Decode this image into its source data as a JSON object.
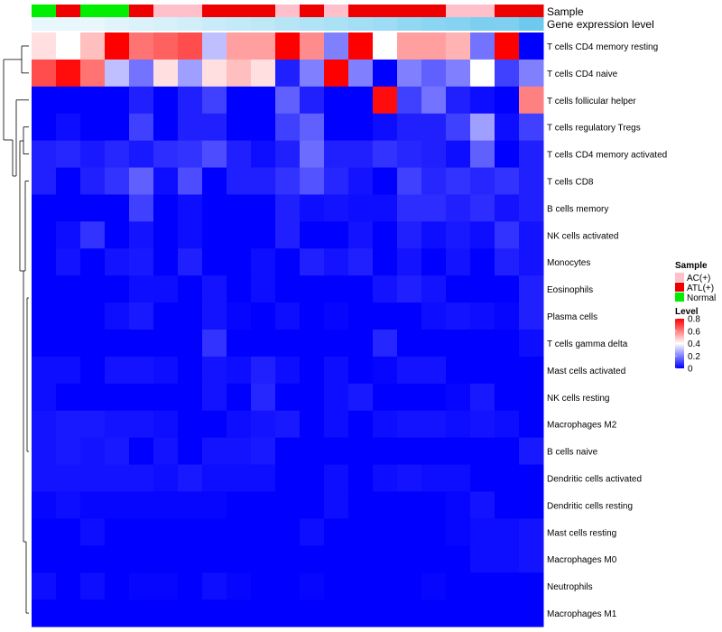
{
  "chart_data": {
    "type": "heatmap",
    "title": "",
    "annotation_labels": {
      "sample": "Sample",
      "expr": "Gene expression level"
    },
    "sample_colors": [
      "#00ee00",
      "#ee0000",
      "#00ee00",
      "#00ee00",
      "#ee0000",
      "#ffc0cb",
      "#ffc0cb",
      "#ee0000",
      "#ee0000",
      "#ee0000",
      "#ffc0cb",
      "#ee0000",
      "#ffc0cb",
      "#ee0000",
      "#ee0000",
      "#ee0000",
      "#ee0000",
      "#ffc0cb",
      "#ffc0cb",
      "#ee0000",
      "#ee0000"
    ],
    "expr_colors": [
      "#e8f7fc",
      "#e8f7fc",
      "#e8f7fc",
      "#e1f4fb",
      "#dbf2fa",
      "#d6f1fa",
      "#d2eff9",
      "#c9ecf8",
      "#c3eaf8",
      "#bfe8f7",
      "#b6e5f6",
      "#b1e3f6",
      "#a9e1f5",
      "#a3def4",
      "#9ddcf4",
      "#93d8f3",
      "#8bd4f2",
      "#86d2f1",
      "#7ecef0",
      "#7fcff0",
      "#6ec9ef"
    ],
    "rows": [
      "T cells CD4 memory resting",
      "T cells CD4 naive",
      "T cells follicular helper",
      "T cells regulatory  Tregs",
      "T cells CD4 memory activated",
      "T cells CD8",
      "B cells memory",
      "NK cells activated",
      "Monocytes",
      "Eosinophils",
      "Plasma cells",
      "T cells gamma delta",
      "Mast cells activated",
      "NK cells resting",
      "Macrophages M2",
      "B cells naive",
      "Dendritic cells activated",
      "Dendritic cells resting",
      "Mast cells resting",
      "Macrophages M0",
      "Neutrophils",
      "Macrophages M1"
    ],
    "values": [
      [
        0.45,
        0.4,
        0.5,
        0.8,
        0.62,
        0.65,
        0.68,
        0.3,
        0.55,
        0.55,
        0.8,
        0.58,
        0.2,
        0.8,
        0.4,
        0.55,
        0.55,
        0.52,
        0.18,
        0.8,
        0.0
      ],
      [
        0.68,
        0.78,
        0.62,
        0.3,
        0.18,
        0.45,
        0.25,
        0.45,
        0.5,
        0.45,
        0.05,
        0.2,
        0.8,
        0.2,
        0.0,
        0.2,
        0.15,
        0.2,
        0.4,
        0.1,
        0.2
      ],
      [
        0.0,
        0.0,
        0.0,
        0.0,
        0.05,
        0.0,
        0.05,
        0.1,
        0.0,
        0.0,
        0.15,
        0.05,
        0.0,
        0.0,
        0.78,
        0.1,
        0.18,
        0.05,
        0.02,
        0.0,
        0.6
      ],
      [
        0.0,
        0.02,
        0.0,
        0.0,
        0.1,
        0.0,
        0.05,
        0.05,
        0.0,
        0.0,
        0.1,
        0.15,
        0.0,
        0.0,
        0.02,
        0.05,
        0.05,
        0.1,
        0.25,
        0.02,
        0.1
      ],
      [
        0.05,
        0.06,
        0.04,
        0.06,
        0.04,
        0.07,
        0.08,
        0.12,
        0.05,
        0.02,
        0.05,
        0.17,
        0.05,
        0.05,
        0.08,
        0.06,
        0.05,
        0.02,
        0.15,
        0.0,
        0.05
      ],
      [
        0.05,
        0.0,
        0.05,
        0.08,
        0.15,
        0.02,
        0.12,
        0.0,
        0.05,
        0.05,
        0.08,
        0.13,
        0.06,
        0.03,
        0.0,
        0.1,
        0.06,
        0.08,
        0.06,
        0.08,
        0.05
      ],
      [
        0.0,
        0.0,
        0.0,
        0.0,
        0.1,
        0.0,
        0.02,
        0.0,
        0.0,
        0.0,
        0.05,
        0.02,
        0.03,
        0.02,
        0.02,
        0.07,
        0.07,
        0.05,
        0.07,
        0.03,
        0.05
      ],
      [
        0.0,
        0.02,
        0.08,
        0.0,
        0.03,
        0.0,
        0.02,
        0.0,
        0.0,
        0.0,
        0.05,
        0.0,
        0.0,
        0.03,
        0.0,
        0.05,
        0.02,
        0.04,
        0.02,
        0.08,
        0.03
      ],
      [
        0.0,
        0.03,
        0.0,
        0.03,
        0.04,
        0.0,
        0.05,
        0.0,
        0.0,
        0.02,
        0.0,
        0.05,
        0.03,
        0.05,
        0.0,
        0.03,
        0.0,
        0.03,
        0.0,
        0.05,
        0.03
      ],
      [
        0.0,
        0.0,
        0.0,
        0.0,
        0.02,
        0.02,
        0.0,
        0.03,
        0.0,
        0.02,
        0.0,
        0.0,
        0.0,
        0.0,
        0.03,
        0.05,
        0.03,
        0.0,
        0.0,
        0.0,
        0.05
      ],
      [
        0.0,
        0.0,
        0.0,
        0.02,
        0.04,
        0.0,
        0.0,
        0.03,
        0.01,
        0.0,
        0.02,
        0.0,
        0.01,
        0.0,
        0.0,
        0.0,
        0.02,
        0.03,
        0.02,
        0.01,
        0.05
      ],
      [
        0.0,
        0.0,
        0.0,
        0.0,
        0.0,
        0.0,
        0.0,
        0.08,
        0.0,
        0.0,
        0.0,
        0.0,
        0.0,
        0.0,
        0.06,
        0.0,
        0.0,
        0.0,
        0.0,
        0.0,
        0.02
      ],
      [
        0.02,
        0.02,
        0.0,
        0.03,
        0.03,
        0.02,
        0.0,
        0.03,
        0.02,
        0.05,
        0.02,
        0.0,
        0.02,
        0.0,
        0.01,
        0.03,
        0.03,
        0.0,
        0.0,
        0.0,
        0.0
      ],
      [
        0.02,
        0.0,
        0.0,
        0.0,
        0.0,
        0.0,
        0.0,
        0.03,
        0.0,
        0.06,
        0.0,
        0.0,
        0.02,
        0.04,
        0.0,
        0.0,
        0.0,
        0.01,
        0.04,
        0.0,
        0.0
      ],
      [
        0.03,
        0.04,
        0.04,
        0.03,
        0.03,
        0.02,
        0.0,
        0.0,
        0.02,
        0.03,
        0.04,
        0.0,
        0.02,
        0.0,
        0.02,
        0.03,
        0.03,
        0.02,
        0.03,
        0.02,
        0.0
      ],
      [
        0.03,
        0.04,
        0.03,
        0.04,
        0.0,
        0.03,
        0.0,
        0.03,
        0.03,
        0.04,
        0.0,
        0.0,
        0.0,
        0.0,
        0.0,
        0.0,
        0.0,
        0.0,
        0.0,
        0.0,
        0.04
      ],
      [
        0.03,
        0.03,
        0.03,
        0.03,
        0.03,
        0.02,
        0.04,
        0.02,
        0.02,
        0.02,
        0.0,
        0.0,
        0.02,
        0.0,
        0.02,
        0.03,
        0.02,
        0.02,
        0.0,
        0.0,
        0.0
      ],
      [
        0.01,
        0.02,
        0.01,
        0.01,
        0.01,
        0.01,
        0.01,
        0.01,
        0.0,
        0.0,
        0.0,
        0.0,
        0.02,
        0.0,
        0.0,
        0.0,
        0.0,
        0.01,
        0.03,
        0.0,
        0.0
      ],
      [
        0.0,
        0.0,
        0.02,
        0.0,
        0.0,
        0.0,
        0.0,
        0.0,
        0.0,
        0.0,
        0.0,
        0.02,
        0.0,
        0.0,
        0.0,
        0.0,
        0.0,
        0.01,
        0.02,
        0.02,
        0.03
      ],
      [
        0.0,
        0.0,
        0.0,
        0.0,
        0.0,
        0.0,
        0.0,
        0.0,
        0.0,
        0.0,
        0.0,
        0.0,
        0.0,
        0.0,
        0.0,
        0.0,
        0.0,
        0.0,
        0.02,
        0.02,
        0.03
      ],
      [
        0.02,
        0.0,
        0.02,
        0.0,
        0.01,
        0.01,
        0.0,
        0.02,
        0.01,
        0.0,
        0.0,
        0.01,
        0.0,
        0.0,
        0.0,
        0.0,
        0.01,
        0.0,
        0.0,
        0.0,
        0.0
      ],
      [
        0.0,
        0.0,
        0.0,
        0.0,
        0.0,
        0.0,
        0.0,
        0.0,
        0.0,
        0.0,
        0.0,
        0.0,
        0.0,
        0.0,
        0.0,
        0.0,
        0.0,
        0.0,
        0.0,
        0.0,
        0.0
      ]
    ],
    "legend_sample": {
      "title": "Sample",
      "items": [
        {
          "label": "AC(+)",
          "color": "#ffc0cb"
        },
        {
          "label": "ATL(+)",
          "color": "#ee0000"
        },
        {
          "label": "Normal",
          "color": "#00ee00"
        }
      ]
    },
    "legend_level": {
      "title": "Level",
      "ticks": [
        "0.8",
        "0.6",
        "0.4",
        "0.2",
        "0"
      ],
      "tick_values": [
        0.8,
        0.6,
        0.4,
        0.2,
        0.0
      ],
      "range": [
        0,
        0.8
      ]
    },
    "color_scale": {
      "low": "#0000ff",
      "mid": "#ffffff",
      "high": "#ff0000",
      "mid_value": 0.4
    }
  }
}
